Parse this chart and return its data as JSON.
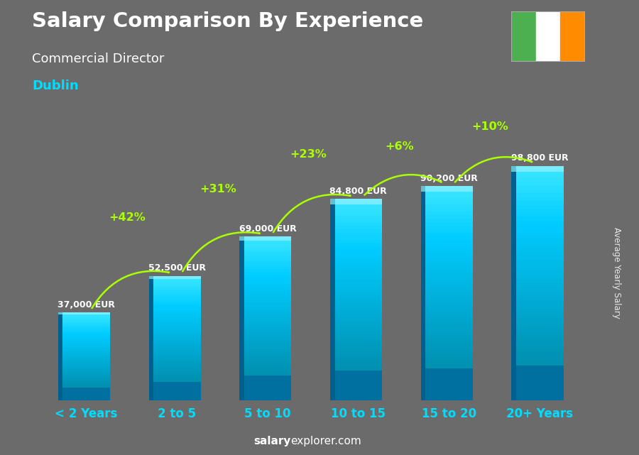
{
  "title": "Salary Comparison By Experience",
  "subtitle": "Commercial Director",
  "city": "Dublin",
  "watermark_text": "Average Yearly Salary",
  "categories": [
    "< 2 Years",
    "2 to 5",
    "5 to 10",
    "10 to 15",
    "15 to 20",
    "20+ Years"
  ],
  "values": [
    37000,
    52500,
    69000,
    84800,
    90200,
    98800
  ],
  "value_labels": [
    "37,000 EUR",
    "52,500 EUR",
    "69,000 EUR",
    "84,800 EUR",
    "90,200 EUR",
    "98,800 EUR"
  ],
  "pct_labels": [
    "+42%",
    "+31%",
    "+23%",
    "+6%",
    "+10%"
  ],
  "bar_color_main": "#00bfff",
  "bar_color_light": "#40d4ff",
  "bar_color_dark": "#0080b0",
  "bar_color_side": "#006090",
  "bg_color": "#6b6b6b",
  "title_color": "#ffffff",
  "subtitle_color": "#ffffff",
  "city_color": "#00ddff",
  "value_label_color": "#ffffff",
  "pct_color": "#aaff00",
  "arrow_color": "#aaff00",
  "xlabel_color": "#00ddff",
  "footer_salary_color": "#ffffff",
  "footer_explorer_color": "#ffffff",
  "flag_colors": [
    "#4CAF50",
    "#ffffff",
    "#FF8C00"
  ],
  "ylim": [
    0,
    115000
  ],
  "bar_width": 0.52
}
